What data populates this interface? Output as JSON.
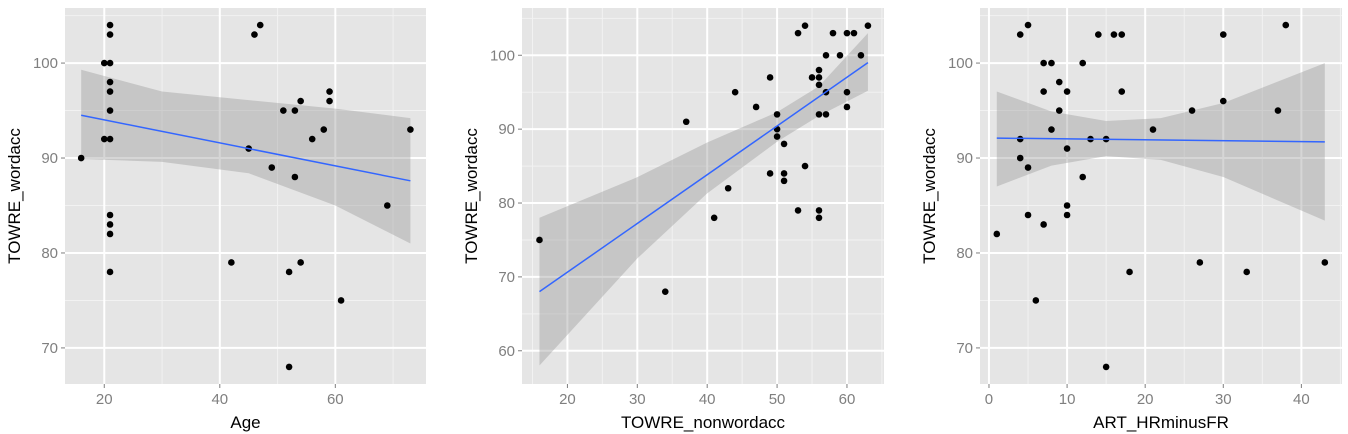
{
  "chart_data": [
    {
      "type": "scatter",
      "xlabel": "Age",
      "ylabel": "TOWRE_wordacc",
      "xlim": [
        13.2,
        75.7
      ],
      "ylim": [
        66.2,
        105.8
      ],
      "xticks": [
        20,
        40,
        60
      ],
      "yticks": [
        70,
        80,
        90,
        100
      ],
      "points": [
        [
          16,
          90
        ],
        [
          20,
          100
        ],
        [
          21,
          100
        ],
        [
          21,
          104
        ],
        [
          21,
          103
        ],
        [
          21,
          98
        ],
        [
          21,
          97
        ],
        [
          21,
          95
        ],
        [
          20,
          92
        ],
        [
          21,
          92
        ],
        [
          21,
          84
        ],
        [
          21,
          83
        ],
        [
          21,
          82
        ],
        [
          21,
          78
        ],
        [
          46,
          103
        ],
        [
          47,
          104
        ],
        [
          45,
          91
        ],
        [
          49,
          89
        ],
        [
          51,
          95
        ],
        [
          53,
          95
        ],
        [
          54,
          96
        ],
        [
          59,
          97
        ],
        [
          59,
          96
        ],
        [
          56,
          92
        ],
        [
          58,
          93
        ],
        [
          53,
          88
        ],
        [
          73,
          93
        ],
        [
          69,
          85
        ],
        [
          42,
          79
        ],
        [
          52,
          78
        ],
        [
          54,
          79
        ],
        [
          61,
          75
        ],
        [
          52,
          68
        ]
      ],
      "fit_line": [
        [
          16,
          94.5
        ],
        [
          73,
          87.6
        ]
      ],
      "confidence_band": {
        "x": [
          16,
          30,
          45,
          60,
          73
        ],
        "lower": [
          89.9,
          89.6,
          88.4,
          85.0,
          81.0
        ],
        "upper": [
          99.3,
          97.0,
          96.1,
          95.2,
          94.2
        ]
      },
      "grid": true
    },
    {
      "type": "scatter",
      "xlabel": "TOWRE_nonwordacc",
      "ylabel": "TOWRE_wordacc",
      "xlim": [
        13.5,
        65.3
      ],
      "ylim": [
        55.5,
        106.4
      ],
      "xticks": [
        20,
        30,
        40,
        50,
        60
      ],
      "yticks": [
        60,
        70,
        80,
        90,
        100
      ],
      "points": [
        [
          16,
          75
        ],
        [
          34,
          68
        ],
        [
          37,
          91
        ],
        [
          41,
          78
        ],
        [
          43,
          82
        ],
        [
          44,
          95
        ],
        [
          47,
          93
        ],
        [
          49,
          97
        ],
        [
          49,
          84
        ],
        [
          50,
          92
        ],
        [
          50,
          90
        ],
        [
          50,
          89
        ],
        [
          51,
          88
        ],
        [
          51,
          84
        ],
        [
          51,
          83
        ],
        [
          53,
          79
        ],
        [
          53,
          103
        ],
        [
          54,
          104
        ],
        [
          54,
          85
        ],
        [
          55,
          97
        ],
        [
          56,
          98
        ],
        [
          56,
          97
        ],
        [
          56,
          96
        ],
        [
          56,
          92
        ],
        [
          56,
          79
        ],
        [
          56,
          78
        ],
        [
          57,
          100
        ],
        [
          57,
          95
        ],
        [
          57,
          92
        ],
        [
          58,
          103
        ],
        [
          59,
          100
        ],
        [
          60,
          103
        ],
        [
          61,
          103
        ],
        [
          60,
          95
        ],
        [
          60,
          93
        ],
        [
          62,
          100
        ],
        [
          63,
          104
        ]
      ],
      "fit_line": [
        [
          16,
          68
        ],
        [
          63,
          99
        ]
      ],
      "confidence_band": {
        "x": [
          16,
          30,
          40,
          50,
          56,
          63
        ],
        "lower": [
          58,
          72.5,
          81.3,
          88.3,
          91.8,
          95.2
        ],
        "upper": [
          78,
          83.5,
          88.2,
          92.3,
          95.8,
          103
        ]
      },
      "grid": true
    },
    {
      "type": "scatter",
      "xlabel": "ART_HRminusFR",
      "ylabel": "TOWRE_wordacc",
      "xlim": [
        -1.15,
        45.2
      ],
      "ylim": [
        66.2,
        105.8
      ],
      "xticks": [
        0,
        10,
        20,
        30,
        40
      ],
      "yticks": [
        70,
        80,
        90,
        100
      ],
      "points": [
        [
          1,
          82
        ],
        [
          4,
          103
        ],
        [
          5,
          104
        ],
        [
          4,
          92
        ],
        [
          4,
          90
        ],
        [
          5,
          89
        ],
        [
          5,
          84
        ],
        [
          6,
          75
        ],
        [
          7,
          100
        ],
        [
          8,
          100
        ],
        [
          7,
          97
        ],
        [
          7,
          83
        ],
        [
          8,
          93
        ],
        [
          9,
          98
        ],
        [
          9,
          95
        ],
        [
          10,
          97
        ],
        [
          10,
          91
        ],
        [
          10,
          85
        ],
        [
          10,
          84
        ],
        [
          12,
          100
        ],
        [
          12,
          88
        ],
        [
          13,
          92
        ],
        [
          14,
          103
        ],
        [
          15,
          92
        ],
        [
          15,
          68
        ],
        [
          16,
          103
        ],
        [
          17,
          103
        ],
        [
          17,
          97
        ],
        [
          18,
          78
        ],
        [
          21,
          93
        ],
        [
          26,
          95
        ],
        [
          27,
          79
        ],
        [
          30,
          103
        ],
        [
          30,
          96
        ],
        [
          33,
          78
        ],
        [
          37,
          95
        ],
        [
          38,
          104
        ],
        [
          43,
          79
        ]
      ],
      "fit_line": [
        [
          1,
          92.1
        ],
        [
          43,
          91.7
        ]
      ],
      "confidence_band": {
        "x": [
          1,
          8,
          15,
          22,
          30,
          43
        ],
        "lower": [
          87.0,
          89.2,
          90.2,
          89.8,
          88.0,
          83.4
        ],
        "upper": [
          97.0,
          94.9,
          93.9,
          94.2,
          95.8,
          100.0
        ]
      },
      "grid": true
    }
  ]
}
